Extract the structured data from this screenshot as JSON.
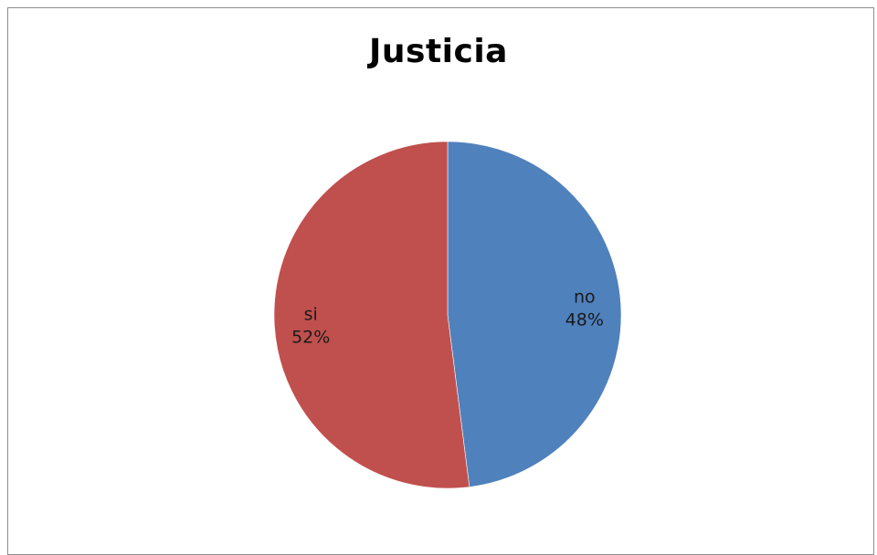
{
  "chart_data": {
    "type": "pie",
    "title": "Justicia",
    "slices": [
      {
        "label": "no",
        "value": 48,
        "value_label": "48%",
        "color": "#4F81BD"
      },
      {
        "label": "si",
        "value": 52,
        "value_label": "52%",
        "color": "#C0504D"
      }
    ],
    "start_angle": "12 o'clock",
    "direction": "clockwise",
    "legend": "none"
  }
}
